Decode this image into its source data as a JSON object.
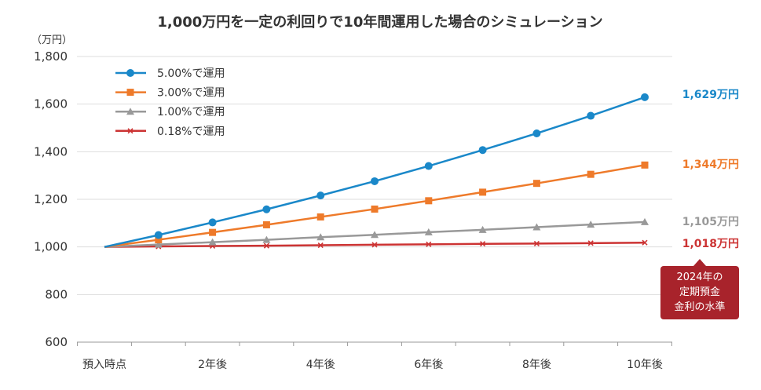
{
  "chart_data": {
    "type": "line",
    "title": "1,000万円を一定の利回りで10年間運用した場合のシミュレーション",
    "ylabel": "（万円）",
    "ylim": [
      600,
      1800
    ],
    "yticks": [
      "600",
      "800",
      "1,000",
      "1,200",
      "1,400",
      "1,600",
      "1,800"
    ],
    "ytick_values": [
      600,
      800,
      1000,
      1200,
      1400,
      1600,
      1800
    ],
    "x": [
      0,
      1,
      2,
      3,
      4,
      5,
      6,
      7,
      8,
      9,
      10
    ],
    "xtick_labels": [
      "預入時点",
      "2年後",
      "4年後",
      "6年後",
      "8年後",
      "10年後"
    ],
    "xtick_positions": [
      0,
      2,
      4,
      6,
      8,
      10
    ],
    "grid": "horizontal",
    "legend_position": "top-left",
    "series": [
      {
        "name": "5.00%で運用",
        "color": "#1a88c9",
        "marker": "circle",
        "values": [
          1000,
          1050,
          1103,
          1158,
          1216,
          1276,
          1340,
          1407,
          1477,
          1551,
          1629
        ],
        "end_label": "1,629万円"
      },
      {
        "name": "3.00%で運用",
        "color": "#ee7a2a",
        "marker": "square",
        "values": [
          1000,
          1030,
          1061,
          1093,
          1126,
          1159,
          1194,
          1230,
          1267,
          1305,
          1344
        ],
        "end_label": "1,344万円"
      },
      {
        "name": "1.00%で運用",
        "color": "#999999",
        "marker": "triangle",
        "values": [
          1000,
          1010,
          1020,
          1030,
          1041,
          1051,
          1062,
          1072,
          1083,
          1094,
          1105
        ],
        "end_label": "1,105万円"
      },
      {
        "name": "0.18%で運用",
        "color": "#cc3333",
        "marker": "cross",
        "values": [
          1000,
          1002,
          1004,
          1005,
          1007,
          1009,
          1011,
          1013,
          1014,
          1016,
          1018
        ],
        "end_label": "1,018万円"
      }
    ],
    "annotation": {
      "lines": [
        "2024年の",
        "定期預金",
        "金利の水準"
      ],
      "color": "#a8232b"
    }
  }
}
